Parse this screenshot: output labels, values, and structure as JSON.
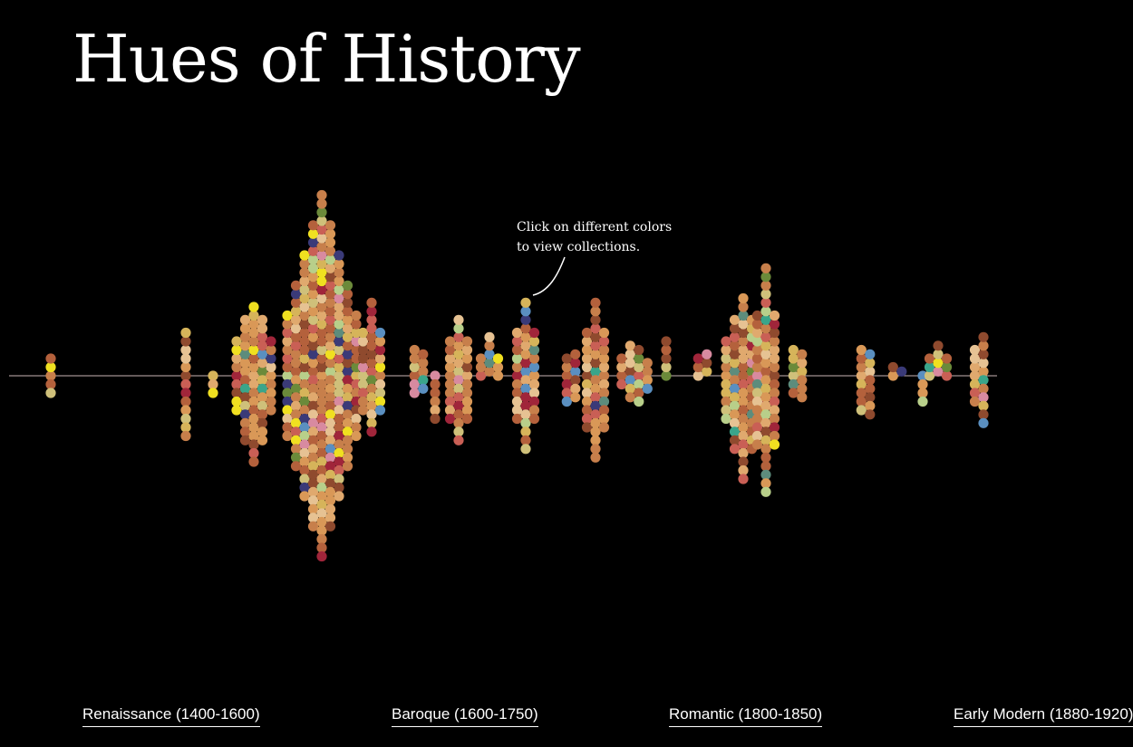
{
  "page": {
    "title": "Hues of History"
  },
  "hint": {
    "line1": "Click on different colors",
    "line2": "to view collections."
  },
  "timeline": {
    "eras": [
      {
        "label": "Renaissance (1400-1600)"
      },
      {
        "label": "Baroque (1600-1750)"
      },
      {
        "label": "Romantic (1800-1850)"
      },
      {
        "label": "Early Modern (1880-1920)"
      }
    ]
  },
  "palette": [
    "#c77f4b",
    "#b4613c",
    "#d99857",
    "#e0a96e",
    "#8f4a2e",
    "#c95f55",
    "#d6b45a",
    "#cfc07a",
    "#e6c293",
    "#a0253a",
    "#5d8c7c",
    "#5a8fc0",
    "#3a3a78",
    "#6b8a3a",
    "#f0e020",
    "#3aa58a",
    "#d88aa0",
    "#b8cf8a"
  ],
  "colors": {
    "background": "#000000",
    "axis": "#c8b4b4",
    "text": "#ffffff"
  }
}
